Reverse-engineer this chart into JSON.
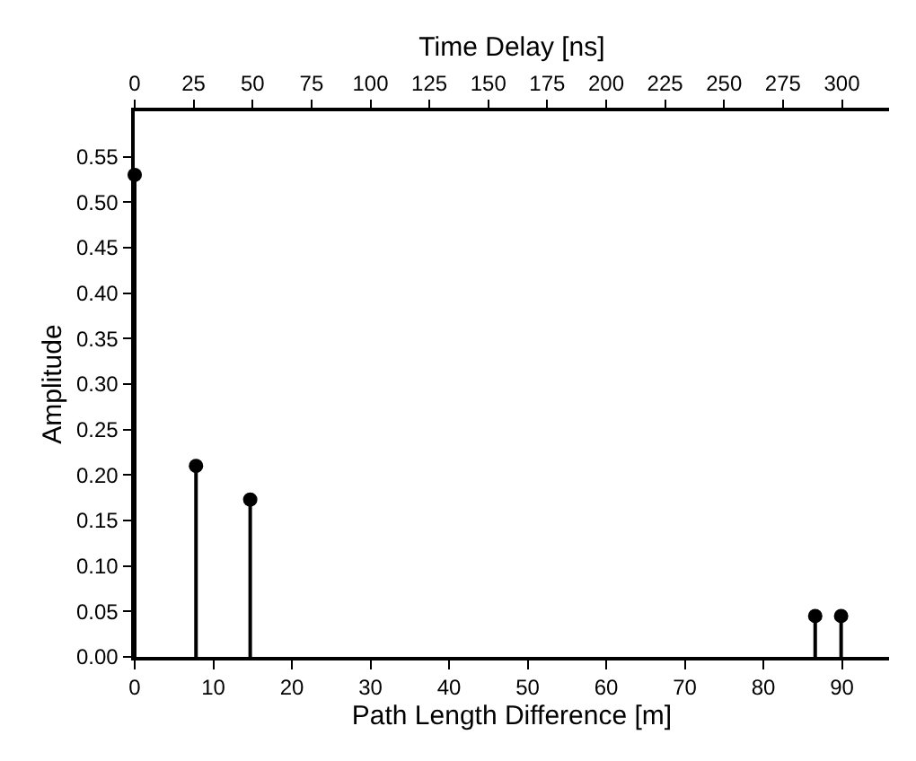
{
  "chart_data": {
    "type": "lollipop",
    "xlabel": "Path Length Difference [m]",
    "ylabel": "Amplitude",
    "x2label": "Time Delay [ns]",
    "x": [
      0,
      7.8,
      14.7,
      86.6,
      89.9
    ],
    "series": [
      {
        "color": "#000000",
        "values": [
          0.53,
          0.21,
          0.173,
          0.045,
          0.045
        ]
      }
    ],
    "xlim": [
      0,
      96
    ],
    "xticks": [
      0,
      10,
      20,
      30,
      40,
      50,
      60,
      70,
      80,
      90
    ],
    "x2lim": [
      0,
      320
    ],
    "x2ticks": [
      0,
      25,
      50,
      75,
      100,
      125,
      150,
      175,
      200,
      225,
      250,
      275,
      300
    ],
    "ylim": [
      0,
      0.6
    ],
    "yticks": [
      {
        "value": 0,
        "label": "0.00"
      },
      0.05,
      {
        "value": 0.1,
        "label": "0.10"
      },
      0.15,
      {
        "value": 0.2,
        "label": "0.20"
      },
      0.25,
      {
        "value": 0.3,
        "label": "0.30"
      },
      0.35,
      {
        "value": 0.4,
        "label": "0.40"
      },
      0.45,
      {
        "value": 0.5,
        "label": "0.50"
      },
      0.55
    ],
    "marker": "circle"
  }
}
